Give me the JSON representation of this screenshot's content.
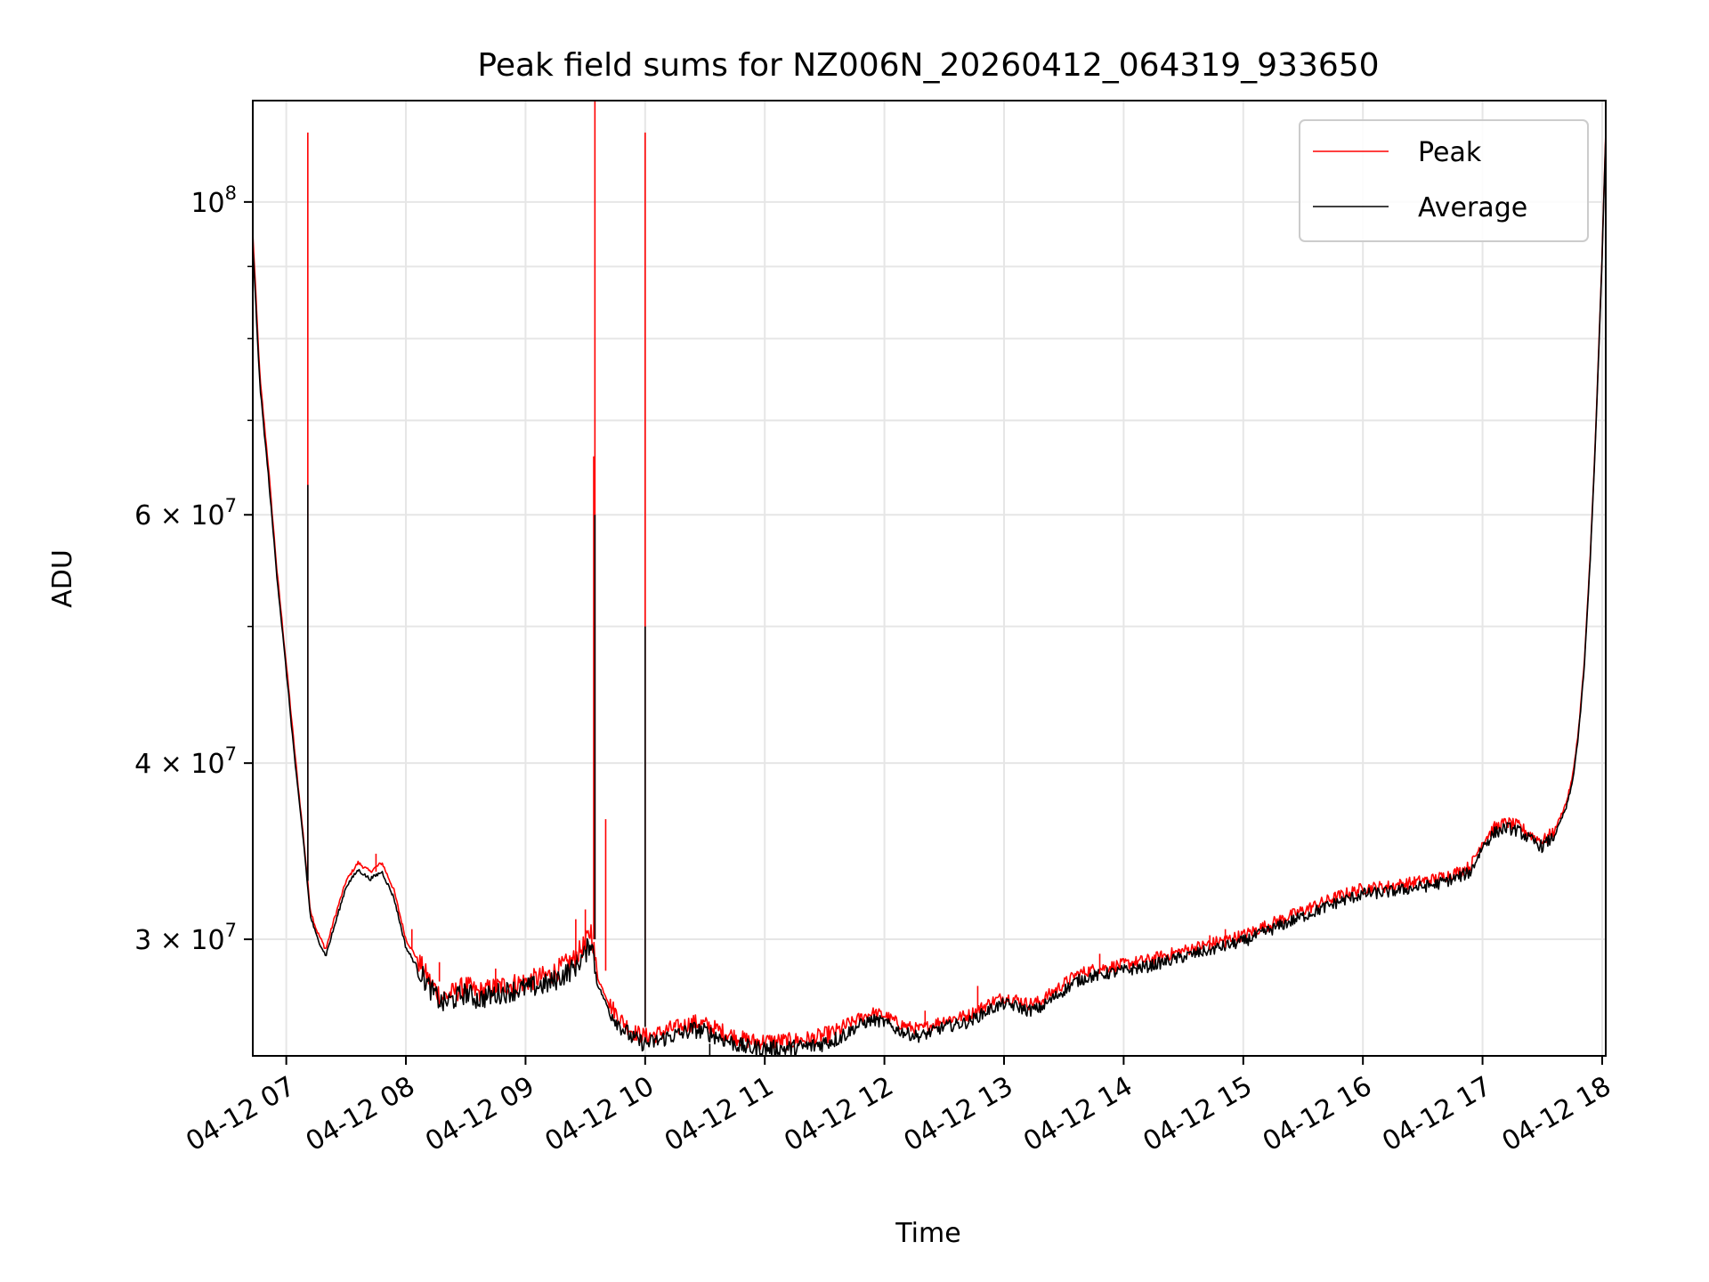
{
  "chart_data": {
    "type": "line",
    "title": "Peak field sums for NZ006N_20260412_064319_933650",
    "xlabel": "Time",
    "ylabel": "ADU",
    "yscale": "log",
    "xlim": [
      6.72,
      18.03
    ],
    "ylim": [
      24800000,
      118000000
    ],
    "grid": true,
    "legend_position": "top-right",
    "x_unit": "hours on 04-12",
    "x_ticks": [
      {
        "value": 7,
        "label": "04-12 07"
      },
      {
        "value": 8,
        "label": "04-12 08"
      },
      {
        "value": 9,
        "label": "04-12 09"
      },
      {
        "value": 10,
        "label": "04-12 10"
      },
      {
        "value": 11,
        "label": "04-12 11"
      },
      {
        "value": 12,
        "label": "04-12 12"
      },
      {
        "value": 13,
        "label": "04-12 13"
      },
      {
        "value": 14,
        "label": "04-12 14"
      },
      {
        "value": 15,
        "label": "04-12 15"
      },
      {
        "value": 16,
        "label": "04-12 16"
      },
      {
        "value": 17,
        "label": "04-12 17"
      },
      {
        "value": 18,
        "label": "04-12 18"
      }
    ],
    "y_major_ticks": [
      {
        "value": 100000000,
        "base": "10",
        "exp": "8"
      },
      {
        "value": 60000000,
        "base": "6 × 10",
        "exp": "7"
      },
      {
        "value": 40000000,
        "base": "4 × 10",
        "exp": "7"
      },
      {
        "value": 30000000,
        "base": "3 × 10",
        "exp": "7"
      }
    ],
    "y_minor_ticks": [
      90000000,
      80000000,
      70000000,
      50000000
    ],
    "series": [
      {
        "name": "Peak",
        "color": "#ff0000",
        "x": [
          6.72,
          6.78,
          6.85,
          6.92,
          7.0,
          7.08,
          7.15,
          7.2,
          7.25,
          7.33,
          7.4,
          7.5,
          7.6,
          7.7,
          7.8,
          7.9,
          8.0,
          8.1,
          8.2,
          8.3,
          8.4,
          8.5,
          8.6,
          8.8,
          9.0,
          9.2,
          9.4,
          9.5,
          9.55,
          9.6,
          9.7,
          9.8,
          9.9,
          10.0,
          10.1,
          10.2,
          10.3,
          10.4,
          10.5,
          10.6,
          10.7,
          10.8,
          10.9,
          11.0,
          11.2,
          11.4,
          11.6,
          11.8,
          11.9,
          12.0,
          12.1,
          12.2,
          12.3,
          12.4,
          12.5,
          12.6,
          12.7,
          12.8,
          12.9,
          13.0,
          13.1,
          13.2,
          13.3,
          13.4,
          13.5,
          13.6,
          13.7,
          13.8,
          13.9,
          14.0,
          14.2,
          14.4,
          14.6,
          14.8,
          15.0,
          15.2,
          15.4,
          15.6,
          15.8,
          16.0,
          16.2,
          16.4,
          16.6,
          16.7,
          16.8,
          16.9,
          17.0,
          17.1,
          17.2,
          17.3,
          17.4,
          17.5,
          17.6,
          17.7,
          17.75,
          17.8,
          17.85,
          17.9,
          17.95,
          18.0,
          18.03
        ],
        "y": [
          95000000,
          75000000,
          65000000,
          55000000,
          47000000,
          40000000,
          35000000,
          31500000,
          30500000,
          29500000,
          31000000,
          33000000,
          34000000,
          33500000,
          34000000,
          32500000,
          30000000,
          29000000,
          28000000,
          27300000,
          27500000,
          27800000,
          27500000,
          27800000,
          28000000,
          28300000,
          29000000,
          29800000,
          30500000,
          28200000,
          27000000,
          26300000,
          25800000,
          25600000,
          25700000,
          25900000,
          26000000,
          26200000,
          26100000,
          25900000,
          25700000,
          25500000,
          25400000,
          25400000,
          25400000,
          25500000,
          25800000,
          26400000,
          26600000,
          26500000,
          26200000,
          26000000,
          25900000,
          26100000,
          26300000,
          26400000,
          26500000,
          26800000,
          27100000,
          27300000,
          27200000,
          27000000,
          27100000,
          27500000,
          27900000,
          28300000,
          28500000,
          28600000,
          28700000,
          28800000,
          29000000,
          29300000,
          29600000,
          29900000,
          30200000,
          30700000,
          31200000,
          31700000,
          32200000,
          32600000,
          32700000,
          32900000,
          33100000,
          33300000,
          33500000,
          33800000,
          35200000,
          36000000,
          36300000,
          36100000,
          35600000,
          35200000,
          35800000,
          37500000,
          39000000,
          42000000,
          47000000,
          56000000,
          70000000,
          92000000,
          112000000
        ]
      },
      {
        "name": "Average",
        "color": "#000000",
        "x": [
          6.72,
          6.78,
          6.85,
          6.92,
          7.0,
          7.08,
          7.15,
          7.2,
          7.25,
          7.33,
          7.4,
          7.5,
          7.6,
          7.7,
          7.8,
          7.9,
          8.0,
          8.1,
          8.2,
          8.3,
          8.4,
          8.5,
          8.6,
          8.8,
          9.0,
          9.2,
          9.4,
          9.5,
          9.55,
          9.6,
          9.7,
          9.8,
          9.9,
          10.0,
          10.1,
          10.2,
          10.3,
          10.4,
          10.5,
          10.6,
          10.7,
          10.8,
          10.9,
          11.0,
          11.2,
          11.4,
          11.6,
          11.8,
          11.9,
          12.0,
          12.1,
          12.2,
          12.3,
          12.4,
          12.5,
          12.6,
          12.7,
          12.8,
          12.9,
          13.0,
          13.1,
          13.2,
          13.3,
          13.4,
          13.5,
          13.6,
          13.7,
          13.8,
          13.9,
          14.0,
          14.2,
          14.4,
          14.6,
          14.8,
          15.0,
          15.2,
          15.4,
          15.6,
          15.8,
          16.0,
          16.2,
          16.4,
          16.6,
          16.7,
          16.8,
          16.9,
          17.0,
          17.1,
          17.2,
          17.3,
          17.4,
          17.5,
          17.6,
          17.7,
          17.75,
          17.8,
          17.85,
          17.9,
          17.95,
          18.0,
          18.03
        ],
        "y": [
          93000000,
          74000000,
          64000000,
          54500000,
          46500000,
          39500000,
          34800000,
          31200000,
          30200000,
          29200000,
          30600000,
          32700000,
          33600000,
          33100000,
          33500000,
          32100000,
          29600000,
          28600000,
          27700000,
          27000000,
          27200000,
          27500000,
          27200000,
          27500000,
          27700000,
          27900000,
          28600000,
          29300000,
          30000000,
          27900000,
          26700000,
          26000000,
          25500000,
          25300000,
          25400000,
          25600000,
          25700000,
          25900000,
          25800000,
          25600000,
          25400000,
          25200000,
          25100000,
          25100000,
          25100000,
          25200000,
          25500000,
          26100000,
          26300000,
          26200000,
          25900000,
          25700000,
          25600000,
          25800000,
          26000000,
          26100000,
          26200000,
          26500000,
          26800000,
          27000000,
          26900000,
          26700000,
          26800000,
          27200000,
          27600000,
          28000000,
          28200000,
          28300000,
          28400000,
          28500000,
          28700000,
          29000000,
          29300000,
          29600000,
          29900000,
          30400000,
          30900000,
          31400000,
          31900000,
          32300000,
          32400000,
          32600000,
          32800000,
          33000000,
          33200000,
          33500000,
          34900000,
          35700000,
          36000000,
          35800000,
          35300000,
          34900000,
          35500000,
          37200000,
          38700000,
          41700000,
          46700000,
          55700000,
          69600000,
          91500000,
          111500000
        ]
      }
    ],
    "spikes": [
      {
        "series": "Peak",
        "x": 7.18,
        "from": 33000000,
        "to": 112000000
      },
      {
        "series": "Average",
        "x": 7.18,
        "from": 33000000,
        "to": 63000000
      },
      {
        "series": "Peak",
        "x": 9.58,
        "from": 30000000,
        "to": 118000000
      },
      {
        "series": "Peak",
        "x": 9.57,
        "from": 30000000,
        "to": 66000000
      },
      {
        "series": "Average",
        "x": 9.58,
        "from": 30000000,
        "to": 60000000
      },
      {
        "series": "Peak",
        "x": 9.67,
        "from": 28500000,
        "to": 36500000
      },
      {
        "series": "Peak",
        "x": 9.5,
        "from": 29500000,
        "to": 31500000
      },
      {
        "series": "Peak",
        "x": 9.42,
        "from": 29000000,
        "to": 31000000
      },
      {
        "series": "Peak",
        "x": 10.0,
        "from": 26000000,
        "to": 112000000
      },
      {
        "series": "Average",
        "x": 10.0,
        "from": 26000000,
        "to": 50000000
      },
      {
        "series": "Peak",
        "x": 7.75,
        "from": 33500000,
        "to": 34500000
      },
      {
        "series": "Peak",
        "x": 8.05,
        "from": 29500000,
        "to": 30500000
      },
      {
        "series": "Peak",
        "x": 8.28,
        "from": 28000000,
        "to": 28900000
      },
      {
        "series": "Peak",
        "x": 8.75,
        "from": 27500000,
        "to": 28600000
      },
      {
        "series": "Peak",
        "x": 12.34,
        "from": 26000000,
        "to": 26700000
      },
      {
        "series": "Peak",
        "x": 12.78,
        "from": 26700000,
        "to": 27800000
      },
      {
        "series": "Peak",
        "x": 13.8,
        "from": 28400000,
        "to": 29300000
      },
      {
        "series": "Peak",
        "x": 14.85,
        "from": 29600000,
        "to": 30500000
      },
      {
        "series": "Peak",
        "x": 14.72,
        "from": 29500000,
        "to": 30200000
      },
      {
        "series": "Average",
        "x": 10.54,
        "from": 25300000,
        "to": 24800000
      }
    ],
    "noise": [
      {
        "x_from": 8.1,
        "x_to": 9.6,
        "amp": 0.018
      },
      {
        "x_from": 9.7,
        "x_to": 11.7,
        "amp": 0.014
      },
      {
        "x_from": 11.7,
        "x_to": 17.6,
        "amp": 0.01
      }
    ]
  }
}
